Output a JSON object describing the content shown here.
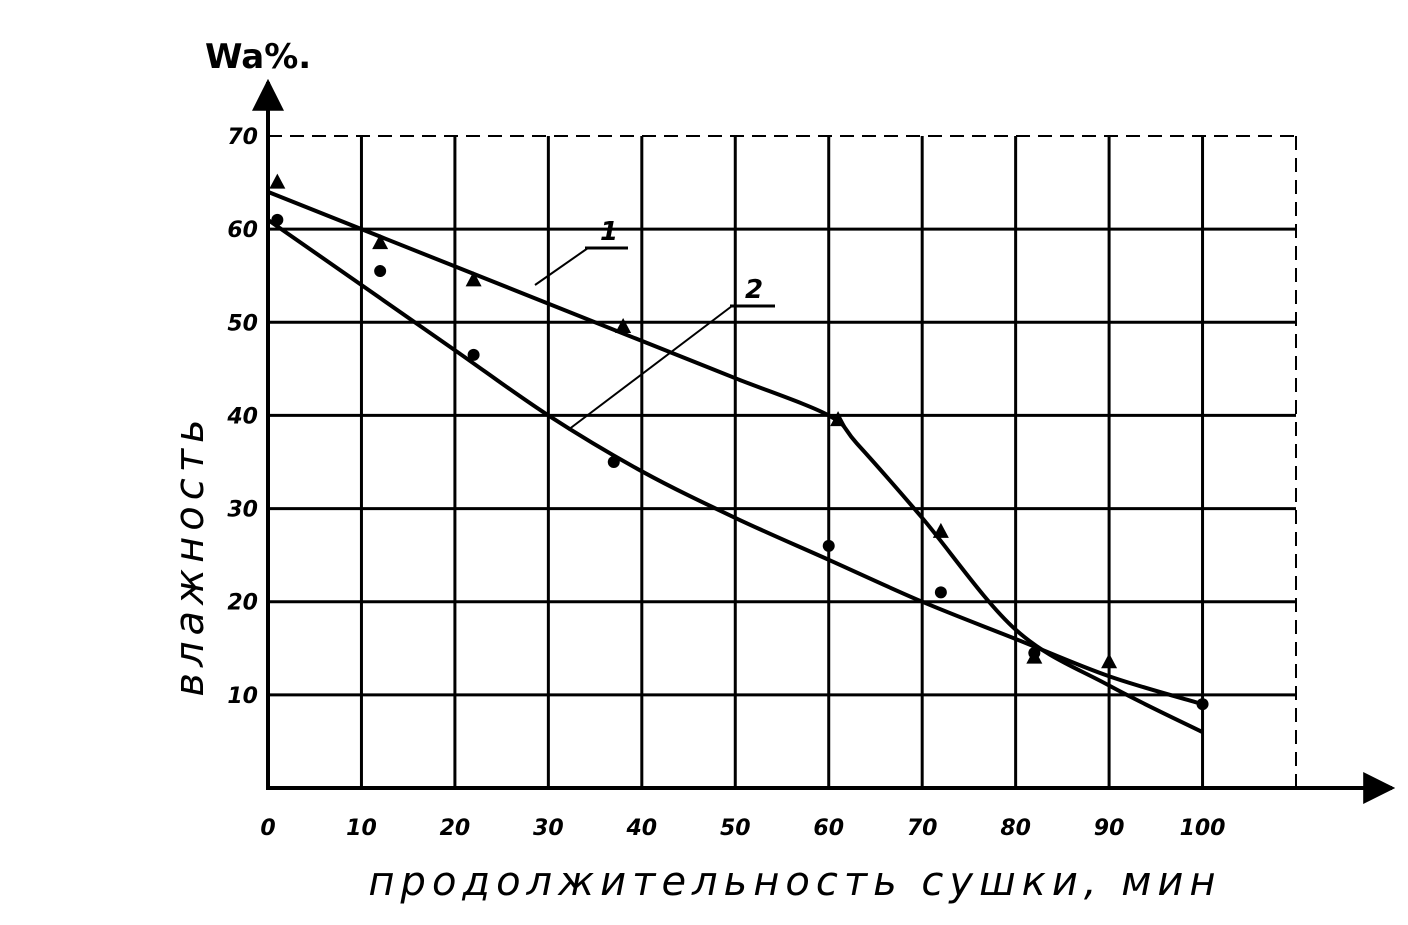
{
  "chart_data": {
    "type": "line",
    "title": "",
    "xlabel": "продолжительность сушки, мин",
    "ylabel": "влажность",
    "y_unit": "Wa%.",
    "xlim": [
      0,
      110
    ],
    "ylim": [
      0,
      70
    ],
    "x_ticks": [
      0,
      10,
      20,
      30,
      40,
      50,
      60,
      70,
      80,
      90,
      100
    ],
    "y_ticks": [
      10,
      20,
      30,
      40,
      50,
      60,
      70
    ],
    "x_tick_labels": [
      "0",
      "10",
      "20",
      "30",
      "40",
      "50",
      "60",
      "70",
      "80",
      "90",
      "100"
    ],
    "y_tick_labels": [
      "10",
      "20",
      "30",
      "40",
      "50",
      "60",
      "70"
    ],
    "grid": true,
    "series": [
      {
        "name": "1",
        "marker": "triangle",
        "curve": {
          "x": [
            0,
            20,
            40,
            50,
            60,
            63,
            70,
            80,
            90,
            100
          ],
          "y": [
            64,
            56,
            48,
            44,
            40,
            37,
            29,
            17,
            11,
            6
          ]
        },
        "points": {
          "x": [
            1,
            12,
            22,
            38,
            61,
            72,
            82,
            90
          ],
          "y": [
            65,
            58.5,
            54.5,
            49.5,
            39.5,
            27.5,
            14,
            13.5
          ]
        }
      },
      {
        "name": "2",
        "marker": "circle",
        "curve": {
          "x": [
            0,
            10,
            20,
            30,
            40,
            50,
            60,
            70,
            80,
            90,
            100
          ],
          "y": [
            61,
            54,
            47,
            40,
            34,
            29,
            24.5,
            20,
            16,
            12,
            9
          ]
        },
        "points": {
          "x": [
            1,
            12,
            22,
            37,
            60,
            72,
            82,
            100
          ],
          "y": [
            61,
            55.5,
            46.5,
            35,
            26,
            21,
            14.5,
            9
          ]
        }
      }
    ],
    "annotations": [
      {
        "text": "1",
        "series": "1"
      },
      {
        "text": "2",
        "series": "2"
      }
    ]
  }
}
